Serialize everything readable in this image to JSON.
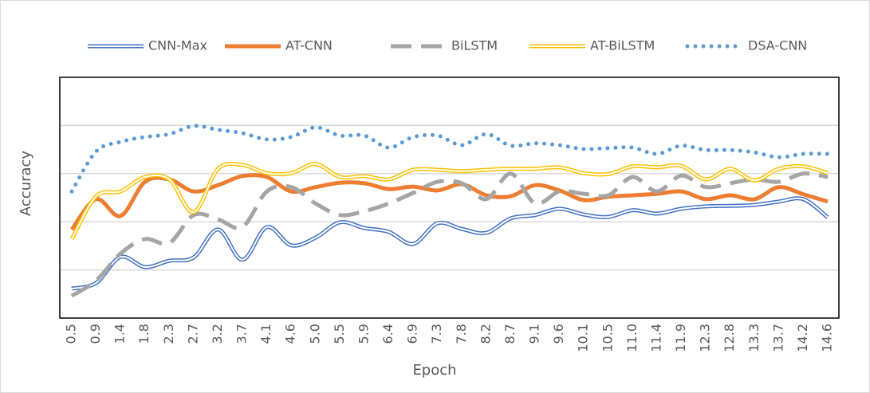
{
  "chart_data": {
    "type": "line",
    "x_label": "Epoch",
    "y_label": "Accuracy",
    "categories": [
      "0.5",
      "0.9",
      "1.4",
      "1.8",
      "2.3",
      "2.7",
      "3.2",
      "3.7",
      "4.1",
      "4.6",
      "5.0",
      "5.5",
      "5.9",
      "6.4",
      "6.9",
      "7.3",
      "7.8",
      "8.2",
      "8.7",
      "9.1",
      "9.6",
      "10.1",
      "10.5",
      "11.0",
      "11.4",
      "11.9",
      "12.3",
      "12.8",
      "13.3",
      "13.7",
      "14.2",
      "14.6"
    ],
    "ylim": [
      0,
      5
    ],
    "ygrid": [
      1,
      2,
      3,
      4
    ],
    "grid": true,
    "legend": "top",
    "smooth": true,
    "series": [
      {
        "name": "CNN-Max",
        "color": "#4472c4",
        "style": "double",
        "values": [
          0.61,
          0.73,
          1.27,
          1.06,
          1.19,
          1.26,
          1.84,
          1.21,
          1.89,
          1.51,
          1.67,
          1.99,
          1.87,
          1.79,
          1.54,
          1.97,
          1.85,
          1.77,
          2.07,
          2.14,
          2.27,
          2.15,
          2.1,
          2.24,
          2.17,
          2.27,
          2.32,
          2.33,
          2.35,
          2.42,
          2.47,
          2.09
        ]
      },
      {
        "name": "AT-CNN",
        "color": "#ed7d31",
        "style": "solid",
        "values": [
          1.84,
          2.47,
          2.12,
          2.83,
          2.88,
          2.63,
          2.76,
          2.95,
          2.93,
          2.63,
          2.72,
          2.81,
          2.8,
          2.68,
          2.73,
          2.65,
          2.78,
          2.55,
          2.53,
          2.76,
          2.65,
          2.45,
          2.52,
          2.55,
          2.58,
          2.63,
          2.47,
          2.55,
          2.47,
          2.72,
          2.57,
          2.42
        ]
      },
      {
        "name": "BiLSTM",
        "color": "#a5a5a5",
        "style": "dash",
        "values": [
          0.46,
          0.78,
          1.34,
          1.64,
          1.56,
          2.14,
          2.05,
          1.89,
          2.63,
          2.72,
          2.38,
          2.14,
          2.22,
          2.38,
          2.6,
          2.83,
          2.8,
          2.47,
          3.0,
          2.38,
          2.63,
          2.58,
          2.55,
          2.93,
          2.63,
          2.96,
          2.72,
          2.8,
          2.88,
          2.83,
          3.0,
          2.93
        ]
      },
      {
        "name": "AT-BiLSTM",
        "color": "#ffc000",
        "style": "double",
        "values": [
          1.64,
          2.53,
          2.63,
          2.93,
          2.88,
          2.2,
          3.1,
          3.18,
          3.01,
          3.01,
          3.2,
          2.93,
          2.95,
          2.88,
          3.08,
          3.08,
          3.05,
          3.08,
          3.1,
          3.1,
          3.13,
          3.01,
          2.99,
          3.15,
          3.13,
          3.16,
          2.88,
          3.1,
          2.86,
          3.1,
          3.15,
          3.01
        ]
      },
      {
        "name": "DSA-CNN",
        "color": "#5b9bd5",
        "style": "dot",
        "values": [
          2.63,
          3.46,
          3.66,
          3.76,
          3.82,
          3.99,
          3.91,
          3.84,
          3.71,
          3.76,
          3.96,
          3.79,
          3.79,
          3.54,
          3.76,
          3.79,
          3.59,
          3.82,
          3.58,
          3.63,
          3.59,
          3.51,
          3.53,
          3.54,
          3.41,
          3.58,
          3.49,
          3.49,
          3.44,
          3.34,
          3.41,
          3.41
        ]
      }
    ]
  }
}
